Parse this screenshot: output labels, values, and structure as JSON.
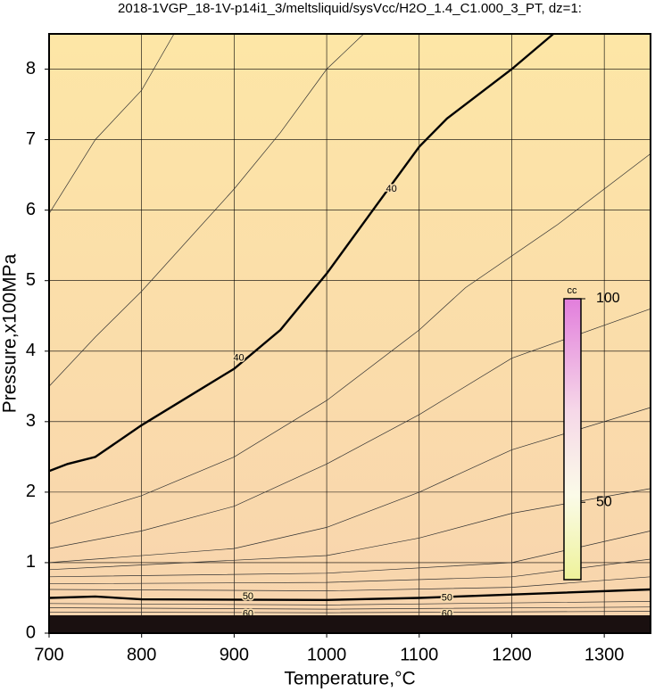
{
  "chart_data": {
    "type": "contour",
    "title": "2018-1VGP_18-1V-p14i1_3/meltsliquid/sysVcc/H2O_1.4_C1.000_3_PT, dz=1:",
    "x_label": "Temperature,°C",
    "y_label": "Pressure,x100MPa",
    "xlim": [
      700,
      1350
    ],
    "ylim": [
      0,
      8.5
    ],
    "xticks": [
      700,
      800,
      900,
      1000,
      1100,
      1200,
      1300
    ],
    "yticks": [
      0,
      1,
      2,
      3,
      4,
      5,
      6,
      7,
      8
    ],
    "grid": true,
    "contours": [
      {
        "bold": false,
        "x": [
          700,
          750,
          800,
          835
        ],
        "y": [
          5.95,
          7.0,
          7.7,
          8.5
        ]
      },
      {
        "bold": false,
        "x": [
          700,
          750,
          800,
          900,
          950,
          1000,
          1040
        ],
        "y": [
          3.5,
          4.2,
          4.85,
          6.3,
          7.1,
          8.0,
          8.5
        ]
      },
      {
        "bold": true,
        "x": [
          700,
          720,
          750,
          800,
          850,
          900,
          950,
          1000,
          1050,
          1100,
          1130,
          1200,
          1245
        ],
        "y": [
          2.3,
          2.4,
          2.5,
          2.95,
          3.35,
          3.75,
          4.3,
          5.1,
          6.0,
          6.9,
          7.3,
          8.0,
          8.5
        ]
      },
      {
        "bold": false,
        "x": [
          700,
          800,
          900,
          1000,
          1100,
          1150,
          1250,
          1350
        ],
        "y": [
          1.55,
          1.95,
          2.5,
          3.3,
          4.3,
          4.9,
          5.8,
          6.8
        ]
      },
      {
        "bold": false,
        "x": [
          700,
          800,
          900,
          1000,
          1100,
          1200,
          1350
        ],
        "y": [
          1.2,
          1.45,
          1.8,
          2.4,
          3.1,
          3.9,
          4.6
        ]
      },
      {
        "bold": false,
        "x": [
          700,
          900,
          1000,
          1100,
          1200,
          1350
        ],
        "y": [
          1.0,
          1.2,
          1.5,
          2.0,
          2.6,
          3.2
        ]
      },
      {
        "bold": false,
        "x": [
          700,
          1000,
          1100,
          1200,
          1350
        ],
        "y": [
          0.9,
          1.1,
          1.35,
          1.7,
          2.05
        ]
      },
      {
        "bold": false,
        "x": [
          700,
          1000,
          1200,
          1350
        ],
        "y": [
          0.8,
          0.85,
          1.0,
          1.45
        ]
      },
      {
        "bold": false,
        "x": [
          700,
          1000,
          1200,
          1350
        ],
        "y": [
          0.7,
          0.72,
          0.8,
          1.05
        ]
      },
      {
        "bold": false,
        "x": [
          700,
          1000,
          1200,
          1350
        ],
        "y": [
          0.62,
          0.6,
          0.65,
          0.8
        ]
      },
      {
        "bold": true,
        "x": [
          700,
          750,
          800,
          1000,
          1100,
          1350
        ],
        "y": [
          0.5,
          0.52,
          0.48,
          0.47,
          0.5,
          0.62
        ]
      },
      {
        "bold": false,
        "x": [
          700,
          1000,
          1350
        ],
        "y": [
          0.42,
          0.4,
          0.45
        ]
      },
      {
        "bold": false,
        "x": [
          700,
          1000,
          1350
        ],
        "y": [
          0.36,
          0.34,
          0.37
        ]
      },
      {
        "bold": false,
        "x": [
          700,
          1000,
          1350
        ],
        "y": [
          0.3,
          0.29,
          0.31
        ]
      }
    ],
    "contour_labels": [
      {
        "value": 40,
        "x": 1070,
        "y": 6.3
      },
      {
        "value": 40,
        "x": 905,
        "y": 3.9
      },
      {
        "value": 50,
        "x": 915,
        "y": 0.52
      },
      {
        "value": 50,
        "x": 1130,
        "y": 0.5
      },
      {
        "value": 60,
        "x": 915,
        "y": 0.27
      },
      {
        "value": 60,
        "x": 1130,
        "y": 0.27
      }
    ],
    "colorbar": {
      "label": "cc",
      "lim": [
        31,
        100
      ],
      "ticks": [
        50,
        100
      ]
    }
  }
}
